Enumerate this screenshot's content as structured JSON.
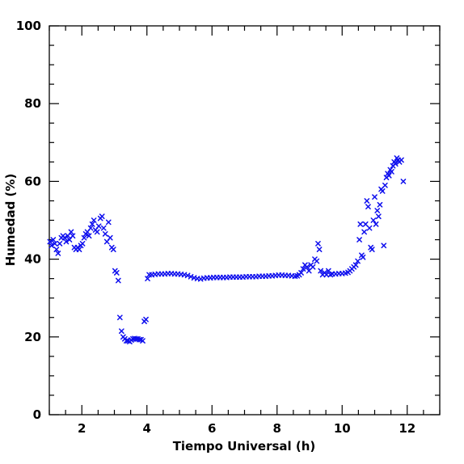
{
  "chart_data": {
    "type": "scatter",
    "xlabel": "Tiempo Universal (h)",
    "ylabel": "Humedad (%)",
    "xlim": [
      1,
      13
    ],
    "ylim": [
      0,
      100
    ],
    "x_major_ticks": [
      2,
      4,
      6,
      8,
      10,
      12
    ],
    "y_major_ticks": [
      0,
      20,
      40,
      60,
      80,
      100
    ],
    "x_tick_labels": [
      "2",
      "4",
      "6",
      "8",
      "10",
      "12"
    ],
    "y_tick_labels": [
      "0",
      "20",
      "40",
      "60",
      "80",
      "100"
    ],
    "grid": false,
    "marker": "x",
    "marker_color": "#1010ee",
    "series": [
      {
        "points": [
          [
            1.02,
            44.5
          ],
          [
            1.07,
            43.5
          ],
          [
            1.12,
            45.0
          ],
          [
            1.17,
            44.0
          ],
          [
            1.22,
            42.5
          ],
          [
            1.27,
            41.5
          ],
          [
            1.32,
            44.0
          ],
          [
            1.37,
            45.5
          ],
          [
            1.42,
            46.0
          ],
          [
            1.47,
            45.5
          ],
          [
            1.52,
            44.5
          ],
          [
            1.57,
            46.0
          ],
          [
            1.62,
            45.0
          ],
          [
            1.67,
            47.0
          ],
          [
            1.72,
            46.0
          ],
          [
            1.77,
            43.0
          ],
          [
            1.82,
            42.5
          ],
          [
            1.87,
            43.0
          ],
          [
            1.92,
            42.5
          ],
          [
            1.97,
            43.5
          ],
          [
            2.02,
            44.0
          ],
          [
            2.07,
            45.5
          ],
          [
            2.12,
            46.5
          ],
          [
            2.17,
            47.0
          ],
          [
            2.22,
            46.0
          ],
          [
            2.27,
            48.0
          ],
          [
            2.32,
            49.0
          ],
          [
            2.37,
            50.0
          ],
          [
            2.42,
            47.5
          ],
          [
            2.47,
            47.0
          ],
          [
            2.52,
            48.5
          ],
          [
            2.57,
            50.5
          ],
          [
            2.62,
            51.0
          ],
          [
            2.67,
            48.0
          ],
          [
            2.72,
            46.5
          ],
          [
            2.77,
            44.5
          ],
          [
            2.82,
            49.5
          ],
          [
            2.87,
            45.5
          ],
          [
            2.92,
            43.0
          ],
          [
            2.97,
            42.5
          ],
          [
            3.02,
            37.0
          ],
          [
            3.07,
            36.5
          ],
          [
            3.12,
            34.5
          ],
          [
            3.17,
            25.0
          ],
          [
            3.22,
            21.5
          ],
          [
            3.27,
            20.0
          ],
          [
            3.32,
            19.5
          ],
          [
            3.37,
            19.0
          ],
          [
            3.42,
            19.0
          ],
          [
            3.47,
            18.8
          ],
          [
            3.52,
            19.2
          ],
          [
            3.57,
            19.5
          ],
          [
            3.62,
            19.6
          ],
          [
            3.67,
            19.5
          ],
          [
            3.72,
            19.5
          ],
          [
            3.77,
            19.3
          ],
          [
            3.82,
            19.3
          ],
          [
            3.87,
            19.0
          ],
          [
            3.92,
            24.0
          ],
          [
            3.97,
            24.5
          ],
          [
            4.02,
            35.0
          ],
          [
            4.07,
            36.0
          ],
          [
            4.15,
            36.0
          ],
          [
            4.25,
            36.1
          ],
          [
            4.35,
            36.2
          ],
          [
            4.45,
            36.2
          ],
          [
            4.55,
            36.2
          ],
          [
            4.65,
            36.3
          ],
          [
            4.75,
            36.3
          ],
          [
            4.85,
            36.2
          ],
          [
            4.95,
            36.2
          ],
          [
            5.05,
            36.1
          ],
          [
            5.15,
            36.0
          ],
          [
            5.25,
            35.8
          ],
          [
            5.35,
            35.5
          ],
          [
            5.45,
            35.2
          ],
          [
            5.55,
            35.0
          ],
          [
            5.65,
            34.9
          ],
          [
            5.75,
            35.1
          ],
          [
            5.85,
            35.2
          ],
          [
            5.95,
            35.2
          ],
          [
            6.05,
            35.3
          ],
          [
            6.15,
            35.3
          ],
          [
            6.25,
            35.3
          ],
          [
            6.35,
            35.3
          ],
          [
            6.45,
            35.3
          ],
          [
            6.55,
            35.4
          ],
          [
            6.65,
            35.4
          ],
          [
            6.75,
            35.4
          ],
          [
            6.85,
            35.4
          ],
          [
            6.95,
            35.4
          ],
          [
            7.05,
            35.5
          ],
          [
            7.15,
            35.5
          ],
          [
            7.25,
            35.5
          ],
          [
            7.35,
            35.5
          ],
          [
            7.45,
            35.6
          ],
          [
            7.55,
            35.6
          ],
          [
            7.65,
            35.6
          ],
          [
            7.75,
            35.7
          ],
          [
            7.85,
            35.7
          ],
          [
            7.95,
            35.8
          ],
          [
            8.05,
            35.9
          ],
          [
            8.15,
            35.9
          ],
          [
            8.25,
            35.8
          ],
          [
            8.35,
            35.8
          ],
          [
            8.45,
            35.7
          ],
          [
            8.55,
            35.6
          ],
          [
            8.62,
            35.7
          ],
          [
            8.68,
            36.0
          ],
          [
            8.74,
            36.5
          ],
          [
            8.8,
            37.5
          ],
          [
            8.86,
            38.5
          ],
          [
            8.92,
            38.0
          ],
          [
            8.98,
            37.0
          ],
          [
            9.04,
            38.5
          ],
          [
            9.1,
            38.0
          ],
          [
            9.16,
            40.0
          ],
          [
            9.22,
            39.5
          ],
          [
            9.26,
            44.0
          ],
          [
            9.3,
            42.5
          ],
          [
            9.34,
            37.0
          ],
          [
            9.4,
            36.0
          ],
          [
            9.46,
            36.5
          ],
          [
            9.52,
            36.0
          ],
          [
            9.58,
            37.0
          ],
          [
            9.64,
            36.0
          ],
          [
            9.7,
            36.2
          ],
          [
            9.8,
            36.2
          ],
          [
            9.9,
            36.3
          ],
          [
            10.0,
            36.3
          ],
          [
            10.1,
            36.4
          ],
          [
            10.18,
            36.6
          ],
          [
            10.24,
            37.0
          ],
          [
            10.3,
            37.5
          ],
          [
            10.36,
            38.0
          ],
          [
            10.42,
            38.5
          ],
          [
            10.48,
            39.5
          ],
          [
            10.53,
            45.0
          ],
          [
            10.56,
            49.0
          ],
          [
            10.6,
            41.0
          ],
          [
            10.64,
            40.5
          ],
          [
            10.68,
            47.0
          ],
          [
            10.72,
            49.0
          ],
          [
            10.76,
            55.0
          ],
          [
            10.8,
            53.5
          ],
          [
            10.84,
            48.0
          ],
          [
            10.88,
            43.0
          ],
          [
            10.92,
            42.5
          ],
          [
            10.96,
            50.0
          ],
          [
            11.0,
            56.0
          ],
          [
            11.04,
            49.0
          ],
          [
            11.08,
            52.5
          ],
          [
            11.12,
            51.0
          ],
          [
            11.16,
            54.0
          ],
          [
            11.2,
            58.0
          ],
          [
            11.24,
            57.5
          ],
          [
            11.28,
            43.5
          ],
          [
            11.32,
            59.0
          ],
          [
            11.36,
            61.0
          ],
          [
            11.4,
            62.0
          ],
          [
            11.44,
            61.5
          ],
          [
            11.48,
            63.0
          ],
          [
            11.52,
            62.5
          ],
          [
            11.56,
            64.0
          ],
          [
            11.6,
            65.0
          ],
          [
            11.64,
            64.5
          ],
          [
            11.68,
            66.0
          ],
          [
            11.72,
            65.5
          ],
          [
            11.76,
            65.0
          ],
          [
            11.82,
            65.5
          ],
          [
            11.88,
            60.0
          ]
        ]
      }
    ]
  }
}
